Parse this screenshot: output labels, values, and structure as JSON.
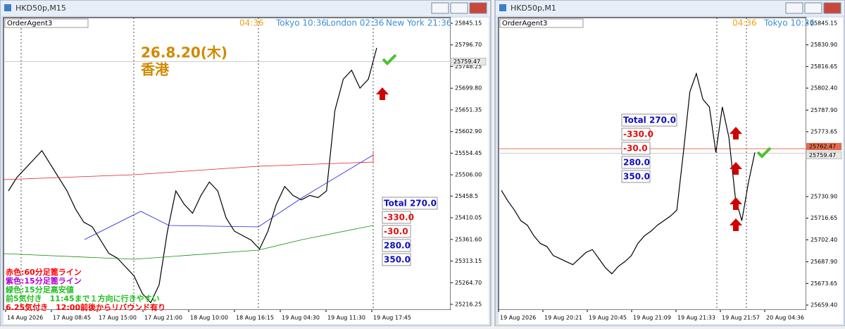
{
  "windows": [
    {
      "title": "HKD50p,M15",
      "toolbar": "OrderAgent3",
      "sessions": [
        "04:36",
        "Tokyo 10:36",
        "London 02:36",
        "New York 21:36"
      ],
      "annotation": {
        "date": "26.8.20(木)",
        "place": "香港"
      },
      "notes": [
        "赤色:60分足篦ライン",
        "紫色:15分足篦ライン",
        "緑色:15分足高安値",
        "前5気付き　11:45まで１方向に行きやすい",
        "6.25気付き　12:00前後からリバウンド有り"
      ],
      "summary": [
        "Total 270.0",
        "-330.0",
        "-30.0",
        "280.0",
        "350.0"
      ],
      "chart_data": {
        "type": "line",
        "ylim": [
          25203.64,
          25857.76
        ],
        "yticks": [
          25216.25,
          {
            "value": 25264.7,
            "label": "25264.70"
          },
          25313.15,
          {
            "value": 25361.6,
            "label": "25361.60"
          },
          25410.05,
          25458.5,
          {
            "value": 25506,
            "label": "25506.00"
          },
          25554.45,
          {
            "value": 25602.9,
            "label": "25602.90"
          },
          25651.35,
          {
            "value": 25699.8,
            "label": "25699.80"
          },
          25748.25,
          {
            "value": 25796.7,
            "label": "25796.70"
          },
          25845.15
        ],
        "current_prices": [
          25759.47
        ],
        "time_labels": [
          "14 Aug 2026",
          "17 Aug 08:45",
          "17 Aug 15:00",
          "17 Aug 21:00",
          "18 Aug 10:00",
          "18 Aug 16:15",
          "19 Aug 04:30",
          "19 Aug 11:30",
          "19 Aug 17:45"
        ],
        "values": [
          25470,
          25500,
          25520,
          25540,
          25560,
          25530,
          25500,
          25470,
          25430,
          25400,
          25390,
          25360,
          25330,
          25320,
          25300,
          25280,
          25240,
          25220,
          25260,
          25380,
          25470,
          25440,
          25420,
          25460,
          25490,
          25470,
          25410,
          25380,
          25370,
          25360,
          25340,
          25380,
          25440,
          25480,
          25460,
          25450,
          25460,
          25455,
          25470,
          25650,
          25720,
          25740,
          25700,
          25720,
          25790
        ]
      }
    },
    {
      "title": "HKD50p,M1",
      "toolbar": "OrderAgent3",
      "sessions": [
        "04:36",
        "Tokyo 10:36"
      ],
      "summary": [
        "Total 270.0",
        "-330.0",
        "-30.0",
        "280.0",
        "350.0"
      ],
      "chart_data": {
        "type": "line",
        "ylim": [
          25656.15,
          25848.87
        ],
        "yticks": [
          {
            "value": 25659.4,
            "label": "25659.40"
          },
          25673.65,
          {
            "value": 25687.9,
            "label": "25687.90"
          },
          {
            "value": 25702.4,
            "label": "25702.40"
          },
          25716.65,
          {
            "value": 25730.9,
            "label": "25730.90"
          },
          25773.65,
          {
            "value": 25787.9,
            "label": "25787.90"
          },
          {
            "value": 25802.4,
            "label": "25802.40"
          },
          25816.65,
          {
            "value": 25830.9,
            "label": "25830.90"
          },
          25845.15
        ],
        "current_prices": [
          25762.47,
          25759.47
        ],
        "time_labels": [
          "19 Aug 2026",
          "19 Aug 20:21",
          "19 Aug 20:45",
          "19 Aug 21:09",
          "19 Aug 21:33",
          "19 Aug 21:57",
          "20 Aug 04:36"
        ],
        "values": [
          25735,
          25728,
          25722,
          25715,
          25712,
          25705,
          25700,
          25698,
          25692,
          25690,
          25688,
          25686,
          25690,
          25694,
          25696,
          25690,
          25684,
          25680,
          25685,
          25688,
          25692,
          25700,
          25705,
          25708,
          25712,
          25715,
          25718,
          25722,
          25760,
          25800,
          25812,
          25795,
          25790,
          25760,
          25790,
          25770,
          25730,
          25715,
          25740,
          25760
        ]
      }
    }
  ]
}
